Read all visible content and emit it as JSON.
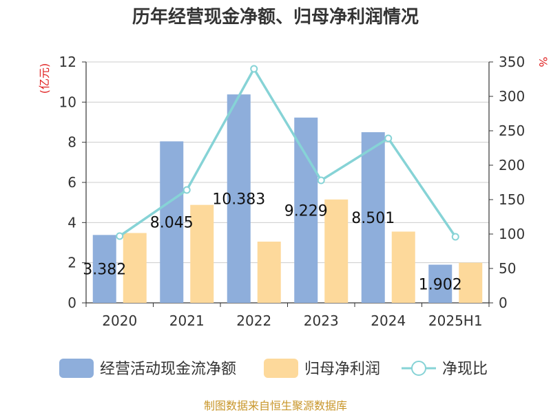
{
  "chart_data": {
    "type": "bar",
    "title": "历年经营现金净额、归母净利润情况",
    "categories": [
      "2020",
      "2021",
      "2022",
      "2023",
      "2024",
      "2025H1"
    ],
    "y_left_unit": "(亿元)",
    "y_right_unit": "%",
    "y_left_range": [
      0,
      12
    ],
    "y_left_ticks": [
      0,
      2,
      4,
      6,
      8,
      10,
      12
    ],
    "y_right_range": [
      0,
      350
    ],
    "y_right_ticks": [
      0,
      50,
      100,
      150,
      200,
      250,
      300,
      350
    ],
    "grid": true,
    "legend_position": "bottom",
    "series": [
      {
        "name": "经营活动现金流净额",
        "type": "bar",
        "axis": "left",
        "color": "#8eaedb",
        "values": [
          3.382,
          8.045,
          10.383,
          9.229,
          8.501,
          1.902
        ],
        "labels": [
          "3.382",
          "8.045",
          "10.383",
          "9.229",
          "8.501",
          "1.902"
        ]
      },
      {
        "name": "归母净利润",
        "type": "bar",
        "axis": "left",
        "color": "#fdd99b",
        "values": [
          3.48,
          4.88,
          3.05,
          5.15,
          3.55,
          2.0
        ]
      },
      {
        "name": "净现比",
        "type": "line",
        "axis": "right",
        "color": "#86d3d6",
        "values": [
          97,
          164,
          340,
          178,
          239,
          96
        ]
      }
    ],
    "source": "制图数据来自恒生聚源数据库"
  }
}
